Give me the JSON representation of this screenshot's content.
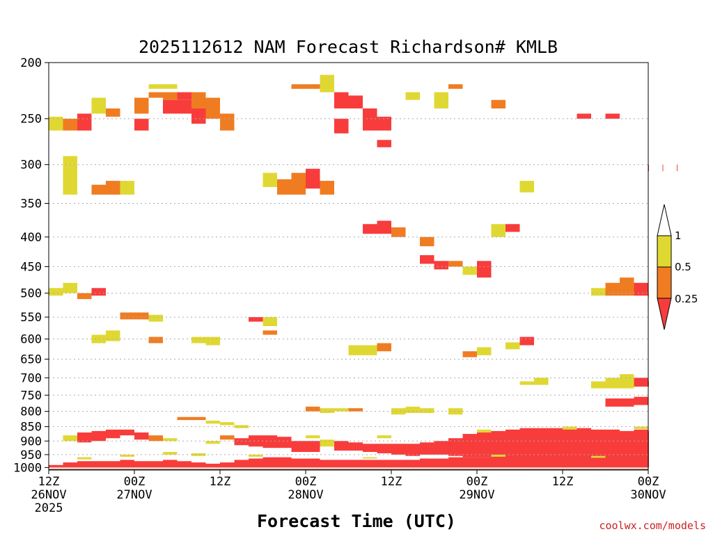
{
  "chart_data": {
    "type": "heatmap",
    "title": "2025112612 NAM Forecast Richardson# KMLB",
    "xlabel": "Forecast Time (UTC)",
    "credit": "coolwx.com/models",
    "yaxis": {
      "levels_hpa": [
        200,
        250,
        300,
        350,
        400,
        450,
        500,
        550,
        600,
        650,
        700,
        750,
        800,
        850,
        900,
        950,
        1000
      ],
      "tick_labels": [
        "200",
        "250",
        "300",
        "350",
        "400",
        "450",
        "500",
        "550",
        "600",
        "650",
        "700",
        "750",
        "800",
        "850",
        "900",
        "950",
        "1000"
      ],
      "range_hpa": [
        200,
        1010
      ]
    },
    "xaxis": {
      "range_hours": [
        0,
        84
      ],
      "ticks": [
        {
          "hour": 0,
          "l1": "12Z",
          "l2": "26NOV",
          "l3": "2025"
        },
        {
          "hour": 12,
          "l1": "00Z",
          "l2": "27NOV",
          "l3": ""
        },
        {
          "hour": 24,
          "l1": "12Z",
          "l2": "",
          "l3": ""
        },
        {
          "hour": 36,
          "l1": "00Z",
          "l2": "28NOV",
          "l3": ""
        },
        {
          "hour": 48,
          "l1": "12Z",
          "l2": "",
          "l3": ""
        },
        {
          "hour": 60,
          "l1": "00Z",
          "l2": "29NOV",
          "l3": ""
        },
        {
          "hour": 72,
          "l1": "12Z",
          "l2": "",
          "l3": ""
        },
        {
          "hour": 84,
          "l1": "00Z",
          "l2": "30NOV",
          "l3": ""
        }
      ]
    },
    "colorbar": {
      "labels": [
        "1",
        "0.5",
        "0.25"
      ],
      "classes": [
        {
          "name": "0.5-1",
          "color": "#e0d832"
        },
        {
          "name": "0.25-0.5",
          "color": "#f07c22"
        },
        {
          "name": "<0.25",
          "color": "#f83c3c"
        }
      ]
    },
    "surface_color": "#8b3a16",
    "cell_hours": 2,
    "cells": [
      [
        14,
        218,
        222,
        1
      ],
      [
        16,
        218,
        222,
        1
      ],
      [
        14,
        225,
        230,
        2
      ],
      [
        16,
        225,
        232,
        2
      ],
      [
        18,
        225,
        232,
        3
      ],
      [
        16,
        232,
        245,
        3
      ],
      [
        18,
        232,
        245,
        3
      ],
      [
        20,
        225,
        240,
        2
      ],
      [
        20,
        240,
        255,
        3
      ],
      [
        22,
        230,
        250,
        2
      ],
      [
        24,
        245,
        262,
        2
      ],
      [
        12,
        230,
        245,
        2
      ],
      [
        12,
        250,
        262,
        3
      ],
      [
        34,
        218,
        222,
        2
      ],
      [
        36,
        218,
        222,
        2
      ],
      [
        38,
        210,
        225,
        1
      ],
      [
        40,
        225,
        240,
        3
      ],
      [
        42,
        228,
        240,
        3
      ],
      [
        40,
        250,
        265,
        3
      ],
      [
        44,
        240,
        262,
        3
      ],
      [
        46,
        248,
        262,
        3
      ],
      [
        46,
        272,
        280,
        3
      ],
      [
        50,
        225,
        232,
        1
      ],
      [
        56,
        218,
        222,
        2
      ],
      [
        54,
        225,
        240,
        1
      ],
      [
        62,
        232,
        240,
        2
      ],
      [
        74,
        245,
        250,
        3
      ],
      [
        78,
        245,
        250,
        3
      ],
      [
        88,
        300,
        308,
        3
      ],
      [
        84,
        300,
        308,
        3
      ],
      [
        86,
        300,
        308,
        3
      ],
      [
        2,
        250,
        262,
        2
      ],
      [
        4,
        245,
        262,
        3
      ],
      [
        0,
        248,
        262,
        1
      ],
      [
        6,
        230,
        245,
        1
      ],
      [
        8,
        240,
        248,
        2
      ],
      [
        2,
        290,
        300,
        1
      ],
      [
        2,
        300,
        338,
        1
      ],
      [
        6,
        325,
        338,
        2
      ],
      [
        8,
        320,
        338,
        2
      ],
      [
        10,
        320,
        338,
        1
      ],
      [
        30,
        310,
        328,
        1
      ],
      [
        32,
        318,
        338,
        2
      ],
      [
        34,
        310,
        338,
        2
      ],
      [
        36,
        305,
        330,
        3
      ],
      [
        38,
        320,
        338,
        2
      ],
      [
        4,
        500,
        512,
        2
      ],
      [
        6,
        490,
        505,
        3
      ],
      [
        2,
        480,
        500,
        1
      ],
      [
        0,
        490,
        505,
        1
      ],
      [
        10,
        540,
        555,
        2
      ],
      [
        12,
        540,
        555,
        2
      ],
      [
        14,
        545,
        560,
        1
      ],
      [
        14,
        595,
        610,
        2
      ],
      [
        20,
        595,
        610,
        1
      ],
      [
        22,
        595,
        615,
        1
      ],
      [
        6,
        590,
        610,
        1
      ],
      [
        8,
        580,
        605,
        1
      ],
      [
        28,
        550,
        560,
        3
      ],
      [
        30,
        580,
        590,
        2
      ],
      [
        30,
        550,
        570,
        1
      ],
      [
        44,
        380,
        395,
        3
      ],
      [
        46,
        375,
        395,
        3
      ],
      [
        48,
        385,
        400,
        2
      ],
      [
        52,
        430,
        445,
        3
      ],
      [
        54,
        440,
        455,
        3
      ],
      [
        56,
        440,
        450,
        2
      ],
      [
        52,
        400,
        415,
        2
      ],
      [
        58,
        450,
        465,
        1
      ],
      [
        60,
        440,
        470,
        3
      ],
      [
        62,
        380,
        400,
        1
      ],
      [
        64,
        380,
        392,
        3
      ],
      [
        66,
        320,
        335,
        1
      ],
      [
        76,
        490,
        505,
        1
      ],
      [
        78,
        480,
        505,
        2
      ],
      [
        80,
        470,
        505,
        2
      ],
      [
        82,
        480,
        505,
        3
      ],
      [
        84,
        500,
        510,
        1
      ],
      [
        76,
        710,
        730,
        1
      ],
      [
        78,
        700,
        730,
        1
      ],
      [
        80,
        690,
        730,
        1
      ],
      [
        82,
        700,
        725,
        3
      ],
      [
        84,
        710,
        725,
        2
      ],
      [
        78,
        760,
        785,
        3
      ],
      [
        80,
        760,
        785,
        3
      ],
      [
        82,
        755,
        780,
        3
      ],
      [
        64,
        608,
        625,
        1
      ],
      [
        66,
        595,
        615,
        3
      ],
      [
        66,
        710,
        720,
        1
      ],
      [
        68,
        700,
        720,
        1
      ],
      [
        60,
        620,
        640,
        1
      ],
      [
        58,
        630,
        645,
        2
      ],
      [
        42,
        615,
        640,
        1
      ],
      [
        44,
        615,
        640,
        1
      ],
      [
        46,
        610,
        630,
        2
      ],
      [
        36,
        785,
        800,
        2
      ],
      [
        38,
        790,
        805,
        1
      ],
      [
        40,
        790,
        800,
        1
      ],
      [
        42,
        790,
        800,
        2
      ],
      [
        48,
        790,
        810,
        1
      ],
      [
        50,
        785,
        805,
        1
      ],
      [
        52,
        790,
        805,
        1
      ],
      [
        56,
        790,
        810,
        1
      ],
      [
        18,
        818,
        828,
        2
      ],
      [
        20,
        818,
        828,
        2
      ],
      [
        22,
        830,
        840,
        1
      ],
      [
        24,
        835,
        845,
        1
      ],
      [
        26,
        845,
        855,
        1
      ],
      [
        2,
        880,
        900,
        1
      ],
      [
        4,
        870,
        905,
        3
      ],
      [
        6,
        865,
        900,
        3
      ],
      [
        8,
        860,
        890,
        3
      ],
      [
        10,
        860,
        880,
        3
      ],
      [
        12,
        870,
        895,
        3
      ],
      [
        14,
        880,
        900,
        2
      ],
      [
        16,
        890,
        900,
        1
      ],
      [
        22,
        900,
        910,
        1
      ],
      [
        24,
        880,
        895,
        2
      ],
      [
        26,
        890,
        915,
        3
      ],
      [
        28,
        880,
        920,
        3
      ],
      [
        30,
        880,
        925,
        3
      ],
      [
        32,
        885,
        925,
        3
      ],
      [
        34,
        900,
        940,
        3
      ],
      [
        36,
        900,
        940,
        3
      ],
      [
        38,
        895,
        920,
        1
      ],
      [
        40,
        900,
        935,
        3
      ],
      [
        42,
        905,
        935,
        3
      ],
      [
        44,
        910,
        940,
        3
      ],
      [
        46,
        910,
        945,
        3
      ],
      [
        48,
        910,
        950,
        3
      ],
      [
        50,
        910,
        955,
        3
      ],
      [
        52,
        905,
        950,
        3
      ],
      [
        54,
        900,
        950,
        3
      ],
      [
        56,
        890,
        955,
        3
      ],
      [
        58,
        875,
        960,
        3
      ],
      [
        60,
        870,
        960,
        3
      ],
      [
        62,
        865,
        965,
        3
      ],
      [
        64,
        860,
        970,
        3
      ],
      [
        66,
        855,
        970,
        3
      ],
      [
        68,
        855,
        970,
        3
      ],
      [
        70,
        855,
        975,
        3
      ],
      [
        72,
        855,
        975,
        3
      ],
      [
        74,
        855,
        970,
        3
      ],
      [
        76,
        860,
        975,
        3
      ],
      [
        78,
        860,
        975,
        3
      ],
      [
        80,
        865,
        975,
        3
      ],
      [
        82,
        860,
        975,
        3
      ],
      [
        84,
        865,
        975,
        3
      ],
      [
        0,
        990,
        1000,
        3
      ],
      [
        2,
        980,
        1000,
        3
      ],
      [
        4,
        975,
        1000,
        3
      ],
      [
        6,
        975,
        1000,
        3
      ],
      [
        8,
        975,
        1000,
        3
      ],
      [
        10,
        970,
        1000,
        3
      ],
      [
        12,
        975,
        1000,
        3
      ],
      [
        14,
        975,
        1000,
        3
      ],
      [
        16,
        970,
        1000,
        3
      ],
      [
        18,
        975,
        1000,
        3
      ],
      [
        20,
        980,
        1000,
        3
      ],
      [
        22,
        985,
        1000,
        3
      ],
      [
        24,
        980,
        1000,
        3
      ],
      [
        26,
        970,
        1000,
        3
      ],
      [
        28,
        965,
        1000,
        3
      ],
      [
        30,
        960,
        1000,
        3
      ],
      [
        32,
        960,
        1000,
        3
      ],
      [
        34,
        965,
        1000,
        3
      ],
      [
        36,
        965,
        1000,
        3
      ],
      [
        38,
        970,
        1000,
        3
      ],
      [
        40,
        970,
        1000,
        3
      ],
      [
        42,
        970,
        1000,
        3
      ],
      [
        44,
        970,
        1000,
        3
      ],
      [
        46,
        970,
        1000,
        3
      ],
      [
        48,
        970,
        1000,
        3
      ],
      [
        50,
        970,
        1000,
        3
      ],
      [
        52,
        965,
        1000,
        3
      ],
      [
        54,
        965,
        1000,
        3
      ],
      [
        56,
        960,
        1000,
        3
      ],
      [
        58,
        960,
        1000,
        3
      ],
      [
        60,
        960,
        1000,
        3
      ],
      [
        62,
        960,
        1000,
        3
      ],
      [
        64,
        960,
        1000,
        3
      ],
      [
        66,
        960,
        1000,
        3
      ],
      [
        68,
        960,
        1000,
        3
      ],
      [
        70,
        960,
        1000,
        3
      ],
      [
        72,
        960,
        1000,
        3
      ],
      [
        74,
        960,
        1000,
        3
      ],
      [
        76,
        960,
        1000,
        3
      ],
      [
        78,
        960,
        1000,
        3
      ],
      [
        80,
        960,
        1000,
        3
      ],
      [
        82,
        960,
        1000,
        3
      ],
      [
        84,
        960,
        1000,
        3
      ],
      [
        16,
        940,
        950,
        1
      ],
      [
        20,
        945,
        955,
        1
      ],
      [
        36,
        880,
        890,
        1
      ],
      [
        46,
        880,
        890,
        1
      ],
      [
        60,
        860,
        870,
        1
      ],
      [
        72,
        850,
        860,
        1
      ],
      [
        82,
        850,
        858,
        1
      ],
      [
        4,
        960,
        968,
        1
      ],
      [
        10,
        950,
        958,
        1
      ],
      [
        28,
        950,
        958,
        1
      ],
      [
        44,
        960,
        965,
        1
      ],
      [
        62,
        950,
        958,
        1
      ],
      [
        76,
        955,
        962,
        1
      ]
    ]
  }
}
